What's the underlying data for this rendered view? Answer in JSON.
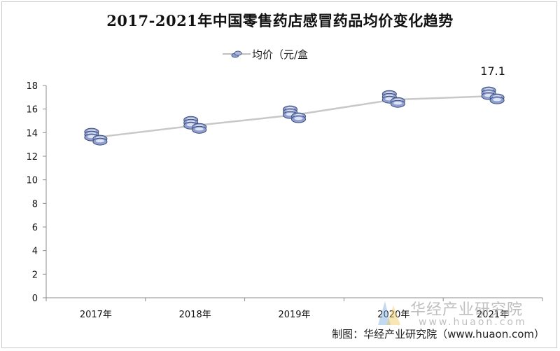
{
  "chart_data": {
    "type": "line",
    "title": "2017-2021年中国零售药店感冒药品均价变化趋势",
    "categories": [
      "2017年",
      "2018年",
      "2019年",
      "2020年",
      "2021年"
    ],
    "series": [
      {
        "name": "均价（元/盒",
        "values": [
          13.6,
          14.6,
          15.5,
          16.8,
          17.1
        ],
        "color": "#c8c8c8",
        "marker": "coin-stack-icon",
        "marker_color": "#8e9fd0"
      }
    ],
    "data_labels": [
      {
        "category": "2021年",
        "text": "17.1"
      }
    ],
    "y_ticks": [
      "0",
      "2",
      "4",
      "6",
      "8",
      "10",
      "12",
      "14",
      "16",
      "18"
    ],
    "ylim": [
      0,
      18
    ],
    "grid": false,
    "legend_position": "top-center"
  },
  "watermark": {
    "name": "华经产业研究院",
    "url": "www.huaon.com",
    "logo": "huajing-logo-icon"
  },
  "source": "制图：华经产业研究院（www.huaon.com）"
}
